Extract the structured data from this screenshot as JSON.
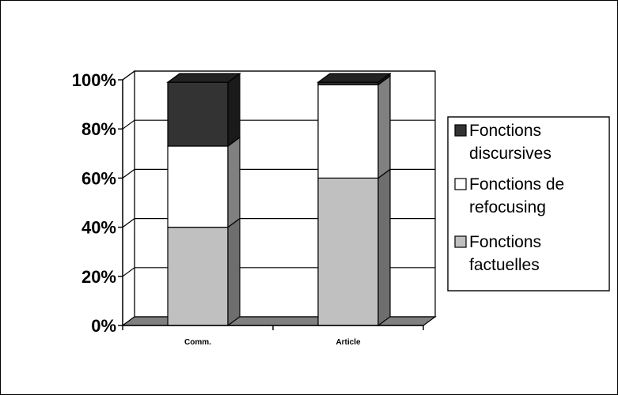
{
  "chart_data": {
    "type": "bar",
    "stacked": true,
    "percent": true,
    "three_d": true,
    "title": "",
    "xlabel": "",
    "ylabel": "",
    "ylim": [
      0,
      100
    ],
    "y_ticks": [
      "0%",
      "20%",
      "40%",
      "60%",
      "80%",
      "100%"
    ],
    "categories": [
      "Comm.",
      "Article"
    ],
    "series": [
      {
        "name": "Fonctions factuelles",
        "values": [
          40,
          60
        ],
        "color": "#c0c0c0"
      },
      {
        "name": "Fonctions de refocusing",
        "values": [
          33,
          38
        ],
        "color": "#ffffff"
      },
      {
        "name": "Fonctions discursives",
        "values": [
          26,
          1
        ],
        "color": "#333333"
      }
    ],
    "legend": {
      "placement": "right",
      "entries": [
        {
          "lines": [
            "Fonctions",
            "discursives"
          ],
          "color": "#333333"
        },
        {
          "lines": [
            "Fonctions de",
            "refocusing"
          ],
          "color": "#ffffff"
        },
        {
          "lines": [
            "Fonctions",
            "factuelles"
          ],
          "color": "#c0c0c0"
        }
      ]
    },
    "grid": true,
    "wall_color": "#ffffff",
    "floor_color": "#808080"
  }
}
